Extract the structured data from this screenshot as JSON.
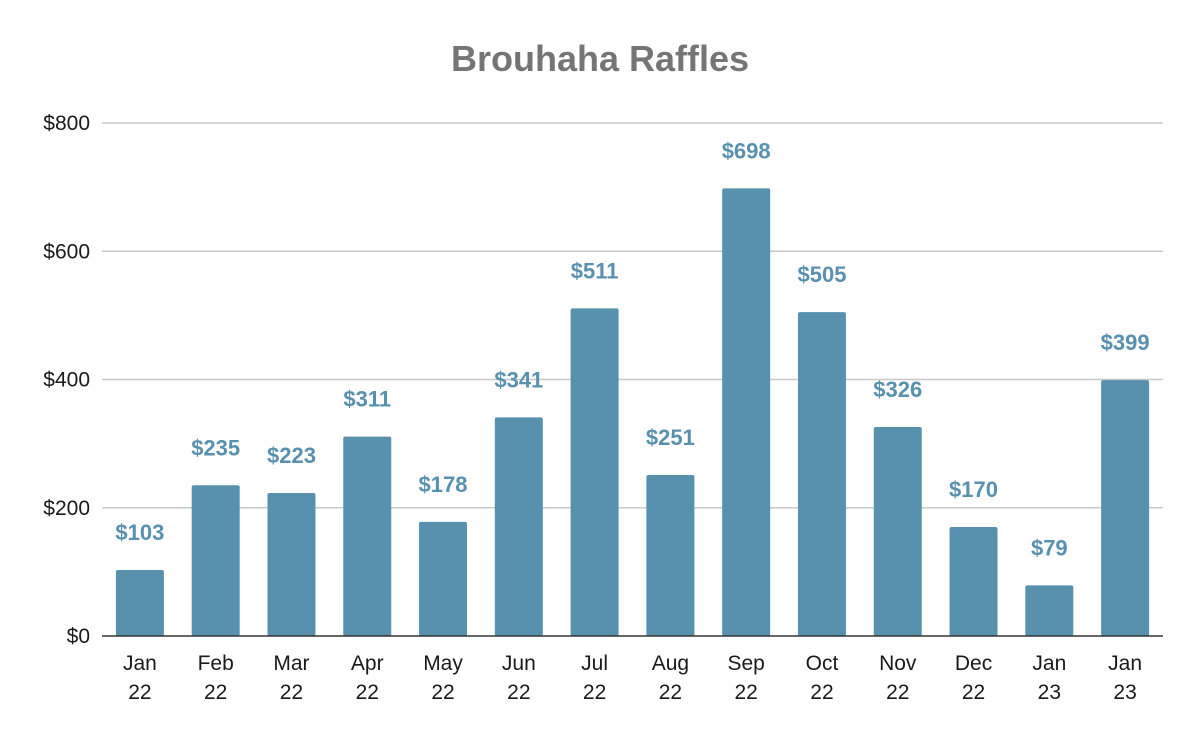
{
  "chart_data": {
    "type": "bar",
    "title": "Brouhaha Raffles",
    "xlabel": "",
    "ylabel": "",
    "categories": [
      [
        "Jan",
        "22"
      ],
      [
        "Feb",
        "22"
      ],
      [
        "Mar",
        "22"
      ],
      [
        "Apr",
        "22"
      ],
      [
        "May",
        "22"
      ],
      [
        "Jun",
        "22"
      ],
      [
        "Jul",
        "22"
      ],
      [
        "Aug",
        "22"
      ],
      [
        "Sep",
        "22"
      ],
      [
        "Oct",
        "22"
      ],
      [
        "Nov",
        "22"
      ],
      [
        "Dec",
        "22"
      ],
      [
        "Jan",
        "23"
      ],
      [
        "Jan",
        "23"
      ]
    ],
    "values": [
      103,
      235,
      223,
      311,
      178,
      341,
      511,
      251,
      698,
      505,
      326,
      170,
      79,
      399
    ],
    "data_labels": [
      "$103",
      "$235",
      "$223",
      "$311",
      "$178",
      "$341",
      "$511",
      "$251",
      "$698",
      "$505",
      "$326",
      "$170",
      "$79",
      "$399"
    ],
    "ylim": [
      0,
      800
    ],
    "y_ticks": [
      0,
      200,
      400,
      600,
      800
    ],
    "y_tick_labels": [
      "$0",
      "$200",
      "$400",
      "$600",
      "$800"
    ],
    "grid": true,
    "legend": "none",
    "colors": {
      "bar": "#5891ae",
      "data_label": "#5891ae",
      "title": "#757575",
      "gridline": "#c8c8c8",
      "axis": "#333333"
    }
  }
}
